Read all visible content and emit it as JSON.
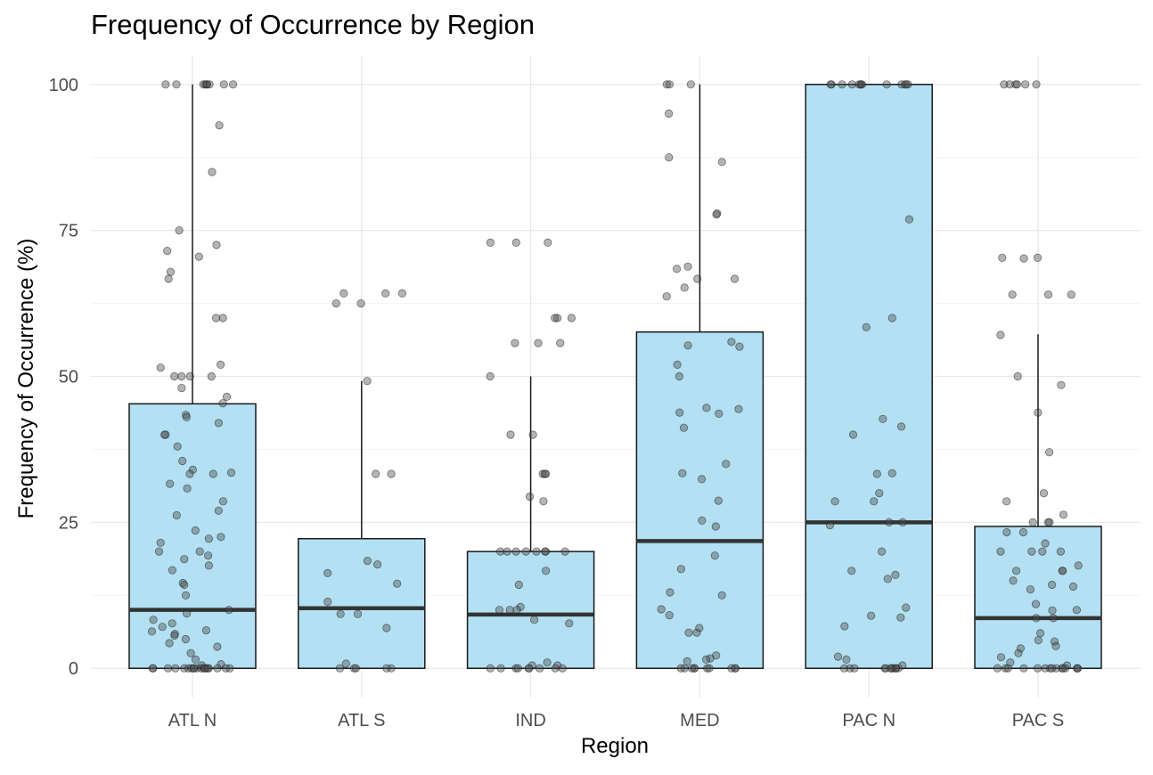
{
  "chart_data": {
    "type": "box",
    "title": "Frequency of Occurrence by Region",
    "xlabel": "Region",
    "ylabel": "Frequency of Occurrence (%)",
    "ylim": [
      -5,
      105
    ],
    "yticks": [
      0,
      25,
      50,
      75,
      100
    ],
    "grid": true,
    "categories": [
      "ATL N",
      "ATL S",
      "IND",
      "MED",
      "PAC N",
      "PAC S"
    ],
    "box_stats": [
      {
        "category": "ATL N",
        "lower_whisker": 0,
        "q1": 0,
        "median": 10,
        "q3": 45.3,
        "upper_whisker": 100
      },
      {
        "category": "ATL S",
        "lower_whisker": 0,
        "q1": 0,
        "median": 10.3,
        "q3": 22.2,
        "upper_whisker": 49.2
      },
      {
        "category": "IND",
        "lower_whisker": 0,
        "q1": 0,
        "median": 9.2,
        "q3": 20,
        "upper_whisker": 50
      },
      {
        "category": "MED",
        "lower_whisker": 0,
        "q1": 0,
        "median": 21.8,
        "q3": 57.6,
        "upper_whisker": 100
      },
      {
        "category": "PAC N",
        "lower_whisker": 0,
        "q1": 0,
        "median": 25,
        "q3": 100,
        "upper_whisker": 100
      },
      {
        "category": "PAC S",
        "lower_whisker": 0,
        "q1": 0,
        "median": 8.6,
        "q3": 24.3,
        "upper_whisker": 57.2
      }
    ],
    "points": [
      {
        "category": "ATL N",
        "values": [
          100,
          100,
          100,
          100,
          100,
          100,
          100,
          100,
          100,
          93,
          85,
          75,
          72.5,
          71.5,
          70.5,
          67.9,
          66.7,
          60,
          60,
          52,
          51.5,
          50,
          50,
          50,
          50,
          48,
          46.5,
          45.4,
          43.4,
          43,
          42,
          40,
          40,
          38,
          35.5,
          34,
          33.5,
          33.3,
          33.3,
          31.6,
          30.8,
          28.6,
          27,
          26.2,
          23.6,
          22.5,
          22.2,
          21.5,
          20,
          20,
          19.3,
          18.7,
          17.6,
          16.8,
          14.6,
          14.3,
          12.5,
          10,
          9.4,
          8.3,
          7.7,
          7.1,
          6.5,
          6.3,
          5.9,
          5.6,
          5,
          4.3,
          3.7,
          2.6,
          1.5,
          0.7,
          0.5,
          0,
          0,
          0,
          0,
          0,
          0,
          0,
          0,
          0,
          0,
          0,
          0,
          0,
          0,
          0,
          0,
          0,
          0,
          0
        ]
      },
      {
        "category": "ATL S",
        "values": [
          64.2,
          64.2,
          64.2,
          62.5,
          62.5,
          49.2,
          33.3,
          33.3,
          18.4,
          17.8,
          16.3,
          14.5,
          11.4,
          9.3,
          9.3,
          6.9,
          0.8,
          0,
          0,
          0,
          0,
          0
        ]
      },
      {
        "category": "IND",
        "values": [
          72.9,
          72.9,
          72.9,
          60,
          60,
          60,
          55.7,
          55.7,
          55.7,
          50,
          40,
          40,
          33.3,
          33.3,
          33.3,
          29.4,
          28.6,
          20,
          20,
          20,
          20,
          20,
          20,
          20,
          20,
          16.7,
          14.3,
          10.5,
          10,
          10,
          10,
          8.3,
          7.7,
          1,
          0.5,
          0.5,
          0,
          0,
          0,
          0,
          0,
          0,
          0,
          0,
          0
        ]
      },
      {
        "category": "MED",
        "values": [
          100,
          100,
          100,
          95,
          87.5,
          86.7,
          77.9,
          77.7,
          68.8,
          68.4,
          66.7,
          66.7,
          65.2,
          63.7,
          55.9,
          55.3,
          55.1,
          52,
          50,
          44.6,
          44.4,
          43.8,
          43.6,
          41.2,
          35,
          33.4,
          32.4,
          28.7,
          25.3,
          24.3,
          19.3,
          17,
          13,
          12.5,
          10.1,
          9.1,
          6.9,
          6.1,
          6.1,
          2.2,
          1.7,
          1.5,
          1.2,
          0,
          0,
          0,
          0,
          0,
          0,
          0,
          0,
          0,
          0
        ]
      },
      {
        "category": "PAC N",
        "values": [
          100,
          100,
          100,
          100,
          100,
          100,
          100,
          100,
          100,
          100,
          100,
          100,
          100,
          76.9,
          60,
          58.4,
          42.7,
          41.4,
          40,
          33.4,
          33.3,
          30,
          28.6,
          28.6,
          25,
          25,
          24.5,
          20,
          16.7,
          16,
          15.3,
          10.4,
          9,
          8.7,
          7.2,
          2,
          1.5,
          0.5,
          0,
          0,
          0,
          0,
          0,
          0,
          0,
          0,
          0,
          0,
          0
        ]
      },
      {
        "category": "PAC S",
        "values": [
          100,
          100,
          100,
          100,
          100,
          100,
          70.3,
          70.3,
          70.2,
          64,
          64,
          64,
          57.1,
          50,
          48.5,
          43.8,
          37,
          30,
          28.6,
          26.3,
          25,
          25,
          25,
          23.3,
          23.3,
          21.4,
          20,
          20,
          20,
          20,
          17.6,
          16.7,
          16.7,
          16.7,
          15,
          14.3,
          14,
          13.5,
          11,
          10,
          9.9,
          8.6,
          8.6,
          6,
          4.8,
          4.6,
          3.8,
          3.4,
          2.6,
          1.9,
          1,
          0.5,
          0,
          0,
          0,
          0,
          0,
          0,
          0,
          0,
          0,
          0,
          0,
          0,
          0,
          0,
          0
        ]
      }
    ],
    "colors": {
      "box_fill": "#b3e0f2",
      "box_stroke": "#1a1a1a",
      "median": "#333333",
      "point_fill": "#4d4d4d",
      "point_stroke": "#1a1a1a",
      "grid_major": "#e8e8e8",
      "grid_minor": "#f2f2f2",
      "tick_text": "#4d4d4d"
    }
  }
}
